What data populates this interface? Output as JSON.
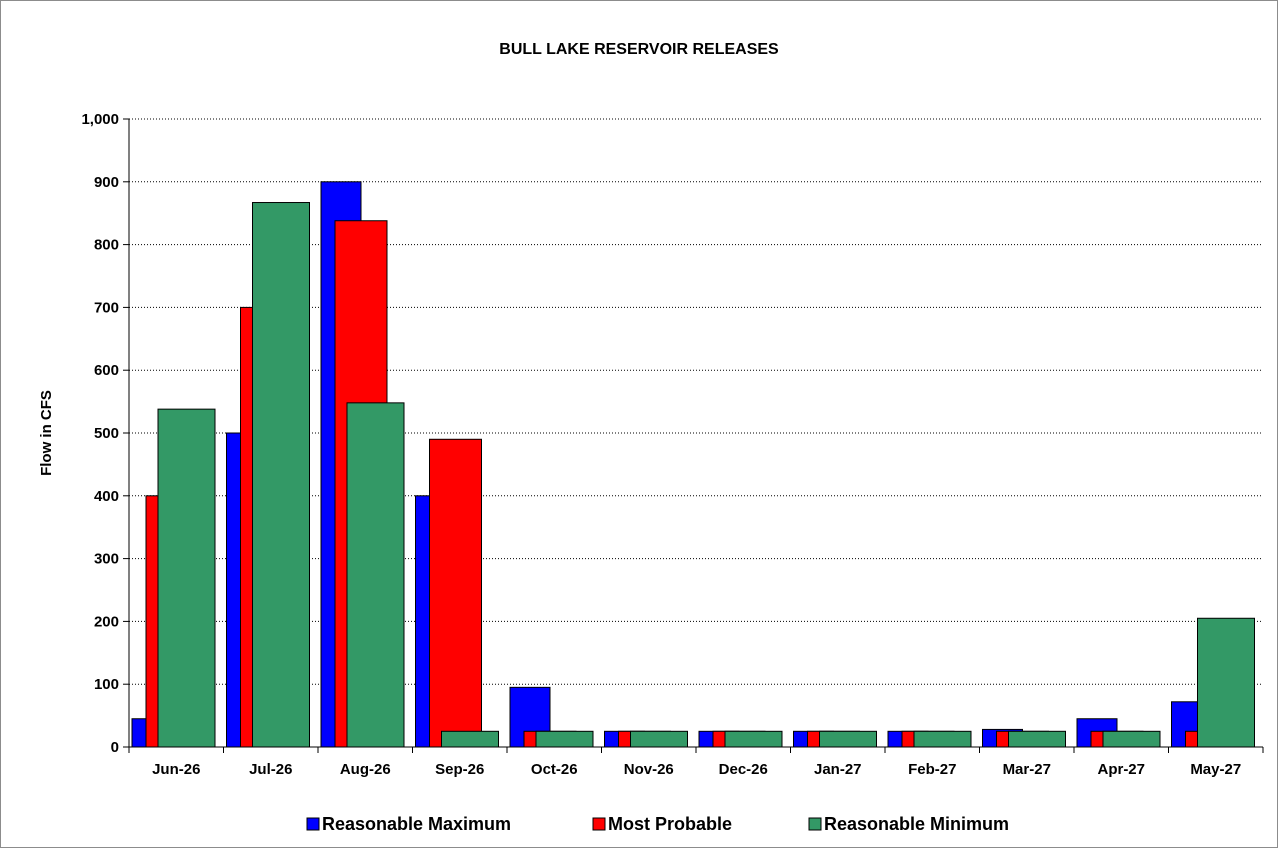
{
  "chart_data": {
    "type": "bar",
    "title": "BULL LAKE RESERVOIR RELEASES",
    "xlabel": "",
    "ylabel": "Flow in CFS",
    "ylim": [
      0,
      1000
    ],
    "yticks": [
      0,
      100,
      200,
      300,
      400,
      500,
      600,
      700,
      800,
      900,
      1000
    ],
    "ytick_labels": [
      "0",
      "100",
      "200",
      "300",
      "400",
      "500",
      "600",
      "700",
      "800",
      "900",
      "1,000"
    ],
    "grid": "horizontal dotted",
    "legend_position": "bottom",
    "categories": [
      "Jun-26",
      "Jul-26",
      "Aug-26",
      "Sep-26",
      "Oct-26",
      "Nov-26",
      "Dec-26",
      "Jan-27",
      "Feb-27",
      "Mar-27",
      "Apr-27",
      "May-27"
    ],
    "series": [
      {
        "name": "Reasonable Maximum",
        "color": "#0000ff",
        "values": [
          45,
          500,
          900,
          400,
          95,
          25,
          25,
          25,
          25,
          28,
          45,
          72
        ]
      },
      {
        "name": "Most Probable",
        "color": "#ff0000",
        "values": [
          400,
          700,
          838,
          490,
          25,
          25,
          25,
          25,
          25,
          25,
          25,
          25
        ]
      },
      {
        "name": "Reasonable Minimum",
        "color": "#339966",
        "values": [
          538,
          867,
          548,
          25,
          25,
          25,
          25,
          25,
          25,
          25,
          25,
          205
        ]
      }
    ]
  }
}
